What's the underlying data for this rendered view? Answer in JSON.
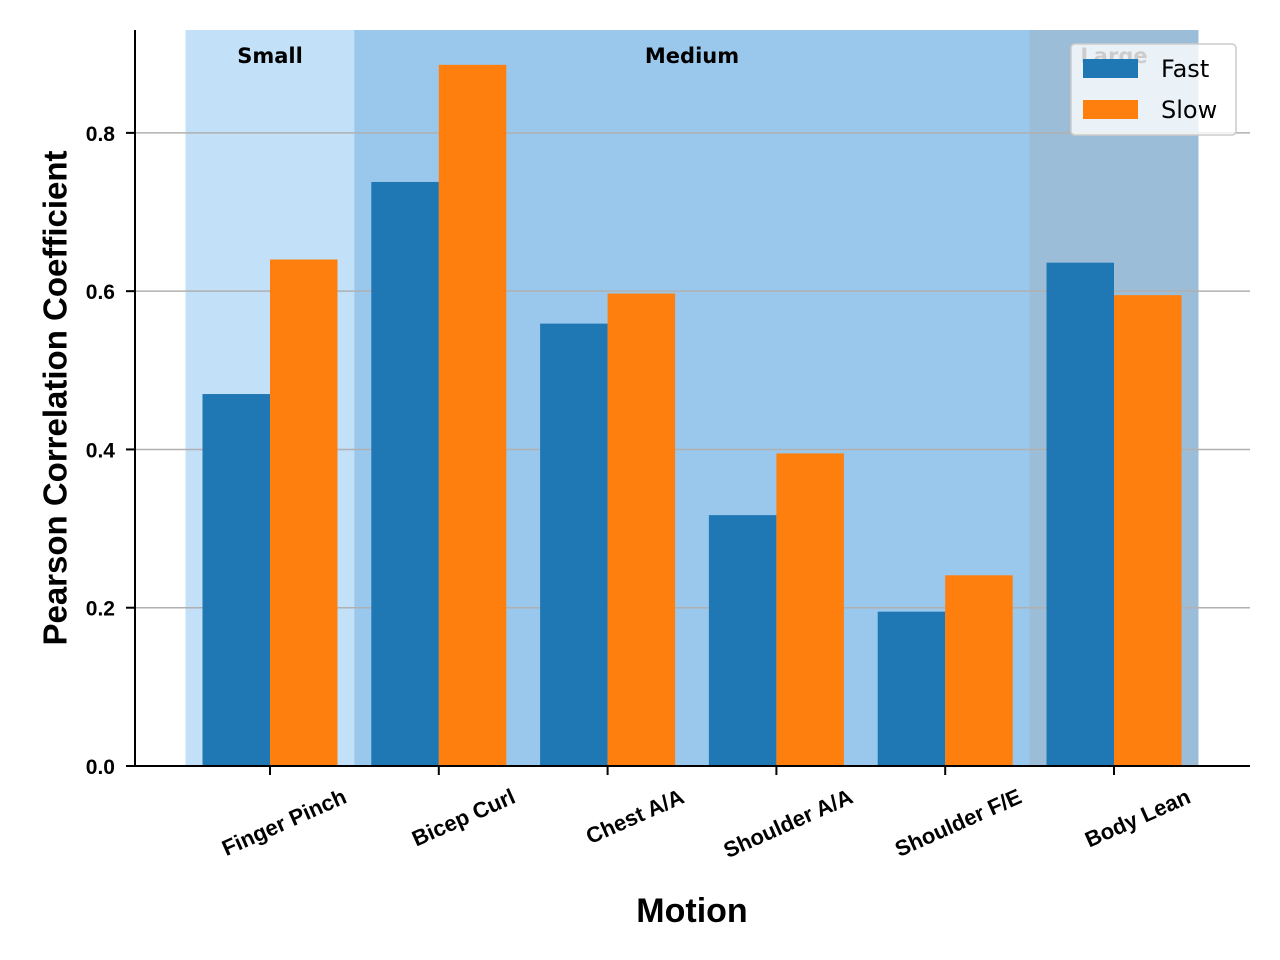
{
  "chart_data": {
    "type": "bar",
    "xlabel": "Motion",
    "ylabel": "Pearson Correlation Coefficient",
    "categories": [
      "Finger Pinch",
      "Bicep Curl",
      "Chest A/A",
      "Shoulder A/A",
      "Shoulder F/E",
      "Body Lean"
    ],
    "series": [
      {
        "name": "Fast",
        "color": "#1f77b4",
        "values": [
          0.47,
          0.738,
          0.559,
          0.317,
          0.195,
          0.636
        ]
      },
      {
        "name": "Slow",
        "color": "#ff7f0e",
        "values": [
          0.64,
          0.886,
          0.597,
          0.395,
          0.241,
          0.595
        ]
      }
    ],
    "ylim": [
      0,
      0.93
    ],
    "yticks": [
      0.0,
      0.2,
      0.4,
      0.6,
      0.8
    ],
    "ytick_labels": [
      "0.0",
      "0.2",
      "0.4",
      "0.6",
      "0.8"
    ],
    "grid": "horizontal",
    "legend_position": "top-right",
    "regions": [
      {
        "label": "Small",
        "categories": [
          "Finger Pinch"
        ],
        "color": "#c2e1f8"
      },
      {
        "label": "Medium",
        "categories": [
          "Bicep Curl",
          "Chest A/A",
          "Shoulder A/A",
          "Shoulder F/E"
        ],
        "color": "#9ac8ec"
      },
      {
        "label": "Large",
        "categories": [
          "Body Lean"
        ],
        "color": "#9bbdd8"
      }
    ]
  }
}
